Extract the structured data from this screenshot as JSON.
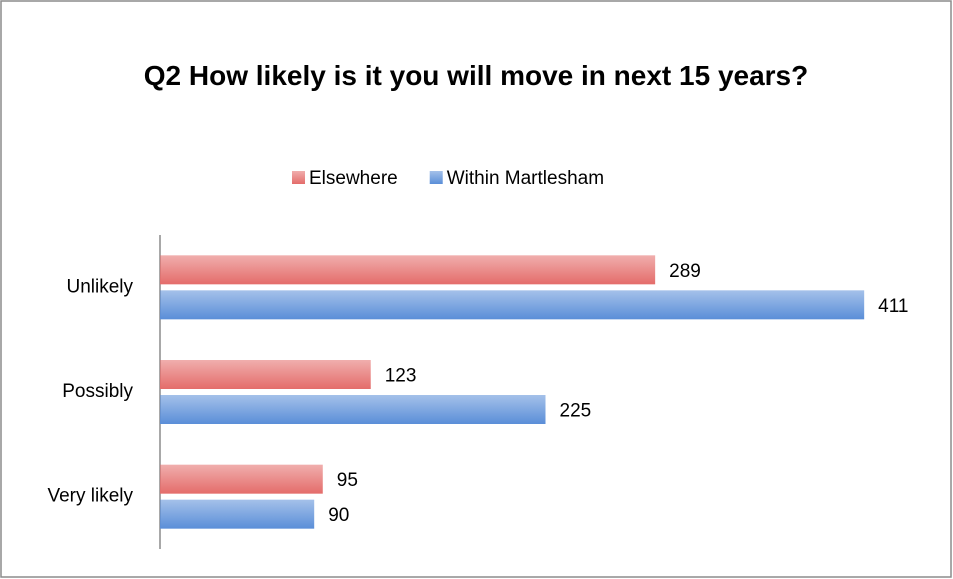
{
  "chart_data": {
    "type": "hbar",
    "title": "Q2 How likely is it you will move in next 15 years?",
    "categories": [
      "Unlikely",
      "Possibly",
      "Very likely"
    ],
    "series": [
      {
        "name": "Elsewhere",
        "color": "#e46c6a",
        "values": [
          289,
          123,
          95
        ]
      },
      {
        "name": "Within Martlesham",
        "color": "#5a8ed8",
        "values": [
          411,
          225,
          90
        ]
      }
    ],
    "xlim": [
      0,
      450
    ],
    "legend": "top"
  }
}
